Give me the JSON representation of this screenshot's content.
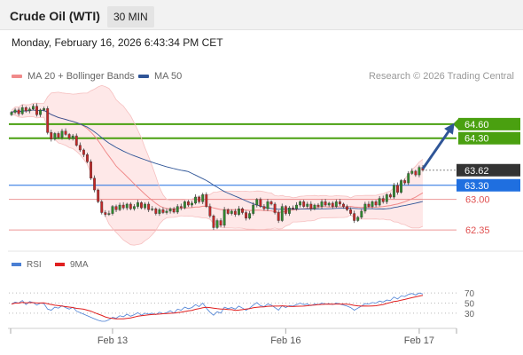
{
  "header": {
    "title": "Crude Oil (WTI)",
    "timeframe": "30 MIN",
    "datetime": "Monday, February 16, 2026 6:43:34 PM CET"
  },
  "legend": {
    "ma20_label": "MA 20 + Bollinger Bands",
    "ma20_color": "#f08a8a",
    "ma50_label": "MA 50",
    "ma50_color": "#2f5597",
    "credit": "Research © 2026 Trading Central"
  },
  "rsi_legend": {
    "rsi_label": "RSI",
    "rsi_color": "#4a7fd4",
    "ma9_label": "9MA",
    "ma9_color": "#e02020"
  },
  "chart_data": [
    {
      "type": "candlestick",
      "title": "",
      "price_range": [
        61.9,
        65.2
      ],
      "x_ticks": [
        {
          "label": "Feb 13",
          "index": 28
        },
        {
          "label": "Feb 16",
          "index": 76
        },
        {
          "label": "Feb 17",
          "index": 113
        }
      ],
      "levels": [
        {
          "label": "64.60",
          "value": 64.6,
          "color": "#4aa010",
          "type": "resistance"
        },
        {
          "label": "64.30",
          "value": 64.3,
          "color": "#4aa010",
          "type": "resistance"
        },
        {
          "label": "63.62",
          "value": 63.62,
          "color": "#333333",
          "type": "last-price"
        },
        {
          "label": "63.30",
          "value": 63.3,
          "color": "#1f6fe0",
          "type": "pivot"
        },
        {
          "label": "63.00",
          "value": 63.0,
          "color": "#e05050",
          "type": "support"
        },
        {
          "label": "62.35",
          "value": 62.35,
          "color": "#e05050",
          "type": "support"
        }
      ],
      "target_arrow": {
        "from_value": 63.65,
        "to_value": 64.55
      },
      "closes": [
        64.85,
        64.9,
        64.82,
        64.95,
        64.88,
        64.92,
        64.98,
        64.8,
        64.9,
        64.93,
        64.42,
        64.28,
        64.4,
        64.32,
        64.45,
        64.38,
        64.3,
        64.35,
        64.15,
        64.05,
        63.95,
        63.8,
        63.45,
        63.2,
        62.95,
        62.72,
        62.68,
        62.7,
        62.85,
        62.78,
        62.88,
        62.82,
        62.9,
        62.8,
        62.85,
        62.93,
        62.82,
        62.9,
        62.78,
        62.8,
        62.7,
        62.78,
        62.72,
        62.75,
        62.8,
        62.73,
        62.85,
        62.82,
        62.95,
        62.88,
        62.92,
        63.05,
        62.95,
        63.1,
        62.85,
        62.65,
        62.4,
        62.55,
        62.45,
        62.78,
        62.7,
        62.75,
        62.68,
        62.8,
        62.72,
        62.6,
        62.7,
        62.88,
        63.0,
        62.85,
        62.8,
        62.95,
        62.9,
        62.72,
        62.55,
        62.85,
        62.7,
        62.82,
        62.8,
        62.88,
        62.95,
        62.85,
        62.9,
        62.8,
        62.88,
        62.85,
        62.95,
        62.88,
        62.92,
        62.85,
        62.95,
        62.9,
        62.85,
        62.78,
        62.7,
        62.55,
        62.62,
        62.75,
        62.9,
        62.85,
        62.95,
        62.88,
        63.02,
        62.95,
        63.1,
        63.05,
        63.3,
        63.15,
        63.4,
        63.35,
        63.55,
        63.6,
        63.52,
        63.68,
        63.62
      ],
      "rsi_range": [
        0,
        100
      ],
      "rsi_levels": [
        70,
        50,
        30
      ],
      "rsi": [
        48,
        52,
        50,
        55,
        47,
        53,
        51,
        46,
        50,
        49,
        38,
        36,
        42,
        40,
        45,
        41,
        38,
        42,
        34,
        31,
        28,
        25,
        22,
        19,
        16,
        14,
        14,
        17,
        22,
        20,
        25,
        23,
        28,
        24,
        27,
        31,
        26,
        30,
        28,
        30,
        27,
        32,
        29,
        31,
        35,
        30,
        38,
        36,
        42,
        39,
        41,
        47,
        43,
        50,
        40,
        32,
        26,
        33,
        30,
        42,
        39,
        41,
        38,
        44,
        40,
        36,
        40,
        46,
        51,
        45,
        43,
        48,
        46,
        41,
        36,
        45,
        41,
        45,
        44,
        47,
        50,
        47,
        48,
        45,
        48,
        47,
        50,
        48,
        49,
        47,
        50,
        48,
        46,
        44,
        41,
        36,
        40,
        44,
        49,
        48,
        51,
        50,
        54,
        52,
        56,
        55,
        62,
        58,
        64,
        63,
        67,
        69,
        66,
        70,
        68
      ]
    }
  ]
}
